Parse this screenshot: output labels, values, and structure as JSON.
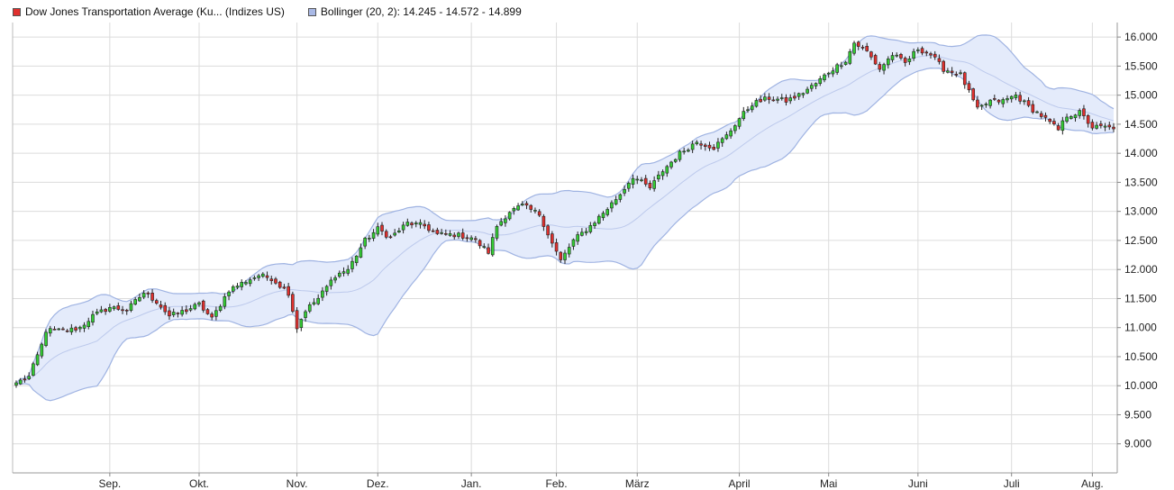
{
  "legend": {
    "main_label": "Dow Jones Transportation Average (Ku... (Indizes US)",
    "main_color": "#e0302e",
    "bollinger_label": "Bollinger (20, 2): 14.245 - 14.572 - 14.899",
    "bollinger_color": "#a9b9e6"
  },
  "colors": {
    "up": "#33cc33",
    "down": "#e0302e",
    "band_fill": "#e4ebfb",
    "band_line": "#9fb3e2",
    "mid_line": "#bcc9ec",
    "grid": "#dcdcdc"
  },
  "chart_data": {
    "type": "candlestick",
    "y_ticks": [
      9000,
      9500,
      10000,
      10500,
      11000,
      11500,
      12000,
      12500,
      13000,
      13500,
      14000,
      14500,
      15000,
      15500,
      16000
    ],
    "y_tick_labels": [
      "9.000",
      "9.500",
      "10.000",
      "10.500",
      "11.000",
      "11.500",
      "12.000",
      "12.500",
      "13.000",
      "13.500",
      "14.000",
      "14.500",
      "15.000",
      "15.500",
      "16.000"
    ],
    "ylim": [
      8500,
      16250
    ],
    "x_labels": [
      "Sep.",
      "Okt.",
      "Nov.",
      "Dez.",
      "Jan.",
      "Feb.",
      "März",
      "April",
      "Mai",
      "Juni",
      "Juli",
      "Aug."
    ],
    "x_label_index": [
      22,
      43,
      66,
      85,
      107,
      127,
      146,
      170,
      191,
      212,
      234,
      253
    ],
    "n_bars": 259,
    "close_anchors": [
      [
        0,
        10050
      ],
      [
        3,
        10150
      ],
      [
        6,
        10700
      ],
      [
        7,
        10950
      ],
      [
        12,
        10950
      ],
      [
        15,
        11000
      ],
      [
        18,
        11200
      ],
      [
        22,
        11350
      ],
      [
        26,
        11300
      ],
      [
        30,
        11600
      ],
      [
        33,
        11450
      ],
      [
        36,
        11200
      ],
      [
        40,
        11300
      ],
      [
        43,
        11400
      ],
      [
        46,
        11150
      ],
      [
        50,
        11650
      ],
      [
        54,
        11800
      ],
      [
        57,
        11900
      ],
      [
        60,
        11850
      ],
      [
        64,
        11600
      ],
      [
        66,
        11000
      ],
      [
        68,
        11300
      ],
      [
        71,
        11500
      ],
      [
        75,
        11900
      ],
      [
        78,
        12000
      ],
      [
        82,
        12500
      ],
      [
        85,
        12700
      ],
      [
        88,
        12550
      ],
      [
        92,
        12800
      ],
      [
        96,
        12750
      ],
      [
        99,
        12600
      ],
      [
        103,
        12600
      ],
      [
        107,
        12550
      ],
      [
        111,
        12300
      ],
      [
        113,
        12750
      ],
      [
        116,
        13000
      ],
      [
        119,
        13100
      ],
      [
        123,
        12950
      ],
      [
        126,
        12450
      ],
      [
        128,
        12150
      ],
      [
        131,
        12500
      ],
      [
        135,
        12750
      ],
      [
        139,
        13050
      ],
      [
        142,
        13300
      ],
      [
        145,
        13600
      ],
      [
        149,
        13400
      ],
      [
        152,
        13700
      ],
      [
        156,
        14000
      ],
      [
        160,
        14200
      ],
      [
        164,
        14100
      ],
      [
        167,
        14300
      ],
      [
        170,
        14600
      ],
      [
        173,
        14850
      ],
      [
        177,
        14950
      ],
      [
        181,
        14900
      ],
      [
        184,
        15000
      ],
      [
        188,
        15200
      ],
      [
        191,
        15400
      ],
      [
        195,
        15600
      ],
      [
        197,
        15900
      ],
      [
        200,
        15750
      ],
      [
        203,
        15450
      ],
      [
        206,
        15700
      ],
      [
        209,
        15550
      ],
      [
        212,
        15800
      ],
      [
        215,
        15700
      ],
      [
        218,
        15450
      ],
      [
        222,
        15350
      ],
      [
        226,
        14750
      ],
      [
        229,
        14900
      ],
      [
        232,
        14900
      ],
      [
        235,
        15000
      ],
      [
        238,
        14800
      ],
      [
        241,
        14650
      ],
      [
        245,
        14400
      ],
      [
        247,
        14650
      ],
      [
        250,
        14700
      ],
      [
        253,
        14450
      ],
      [
        256,
        14450
      ],
      [
        258,
        14420
      ]
    ],
    "bollinger": {
      "params": "(20, 2)",
      "last": {
        "lower": 14245,
        "middle": 14572,
        "upper": 14899
      }
    },
    "grid": true
  }
}
